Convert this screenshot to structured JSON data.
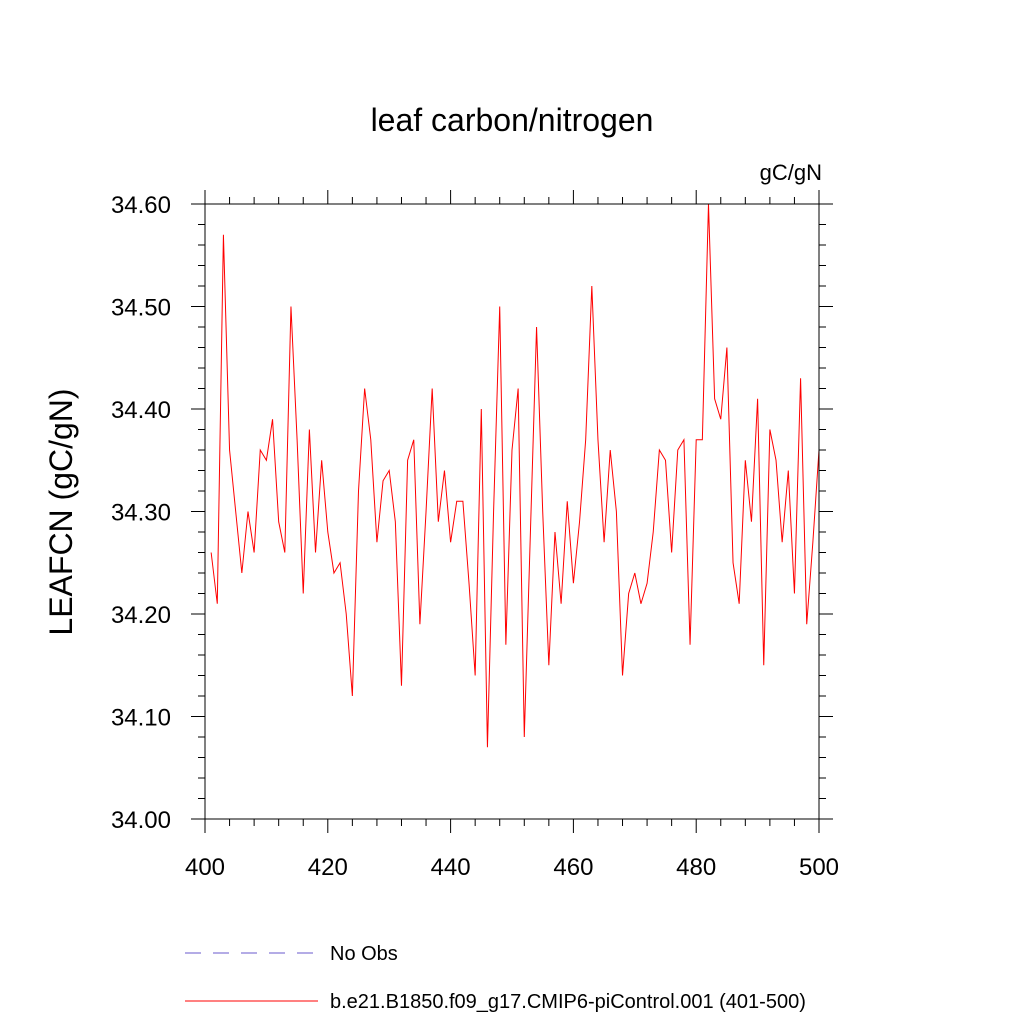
{
  "chart_data": {
    "type": "line",
    "title": "leaf carbon/nitrogen",
    "units": "gC/gN",
    "xlabel": "",
    "ylabel": "LEAFCN  (gC/gN)",
    "xlim": [
      400,
      500
    ],
    "ylim": [
      34.0,
      34.6
    ],
    "x_ticks": [
      400,
      420,
      440,
      460,
      480,
      500
    ],
    "x_tick_labels": [
      "400",
      "420",
      "440",
      "460",
      "480",
      "500"
    ],
    "y_ticks": [
      34.0,
      34.1,
      34.2,
      34.3,
      34.4,
      34.5,
      34.6
    ],
    "y_tick_labels": [
      "34.00",
      "34.10",
      "34.20",
      "34.30",
      "34.40",
      "34.50",
      "34.60"
    ],
    "series": [
      {
        "name": "No Obs",
        "color": "#6a5acd",
        "style": "dashed",
        "x": [],
        "values": []
      },
      {
        "name": "b.e21.B1850.f09_g17.CMIP6-piControl.001 (401-500)",
        "color": "#ff0000",
        "style": "solid",
        "x": [
          401,
          402,
          403,
          404,
          405,
          406,
          407,
          408,
          409,
          410,
          411,
          412,
          413,
          414,
          415,
          416,
          417,
          418,
          419,
          420,
          421,
          422,
          423,
          424,
          425,
          426,
          427,
          428,
          429,
          430,
          431,
          432,
          433,
          434,
          435,
          436,
          437,
          438,
          439,
          440,
          441,
          442,
          443,
          444,
          445,
          446,
          447,
          448,
          449,
          450,
          451,
          452,
          453,
          454,
          455,
          456,
          457,
          458,
          459,
          460,
          461,
          462,
          463,
          464,
          465,
          466,
          467,
          468,
          469,
          470,
          471,
          472,
          473,
          474,
          475,
          476,
          477,
          478,
          479,
          480,
          481,
          482,
          483,
          484,
          485,
          486,
          487,
          488,
          489,
          490,
          491,
          492,
          493,
          494,
          495,
          496,
          497,
          498,
          499,
          500
        ],
        "values": [
          34.26,
          34.21,
          34.57,
          34.36,
          34.3,
          34.24,
          34.3,
          34.26,
          34.36,
          34.35,
          34.39,
          34.29,
          34.26,
          34.5,
          34.37,
          34.22,
          34.38,
          34.26,
          34.35,
          34.28,
          34.24,
          34.25,
          34.2,
          34.12,
          34.32,
          34.42,
          34.37,
          34.27,
          34.33,
          34.34,
          34.29,
          34.13,
          34.35,
          34.37,
          34.19,
          34.3,
          34.42,
          34.29,
          34.34,
          34.27,
          34.31,
          34.31,
          34.23,
          34.14,
          34.4,
          34.07,
          34.3,
          34.5,
          34.17,
          34.36,
          34.42,
          34.08,
          34.28,
          34.48,
          34.3,
          34.15,
          34.28,
          34.21,
          34.31,
          34.23,
          34.29,
          34.37,
          34.52,
          34.37,
          34.27,
          34.36,
          34.3,
          34.14,
          34.22,
          34.24,
          34.21,
          34.23,
          34.28,
          34.36,
          34.35,
          34.26,
          34.36,
          34.37,
          34.17,
          34.37,
          34.37,
          34.6,
          34.41,
          34.39,
          34.46,
          34.25,
          34.21,
          34.35,
          34.29,
          34.41,
          34.15,
          34.38,
          34.35,
          34.27,
          34.34,
          34.22,
          34.43,
          34.19,
          34.27,
          34.36
        ]
      }
    ]
  }
}
